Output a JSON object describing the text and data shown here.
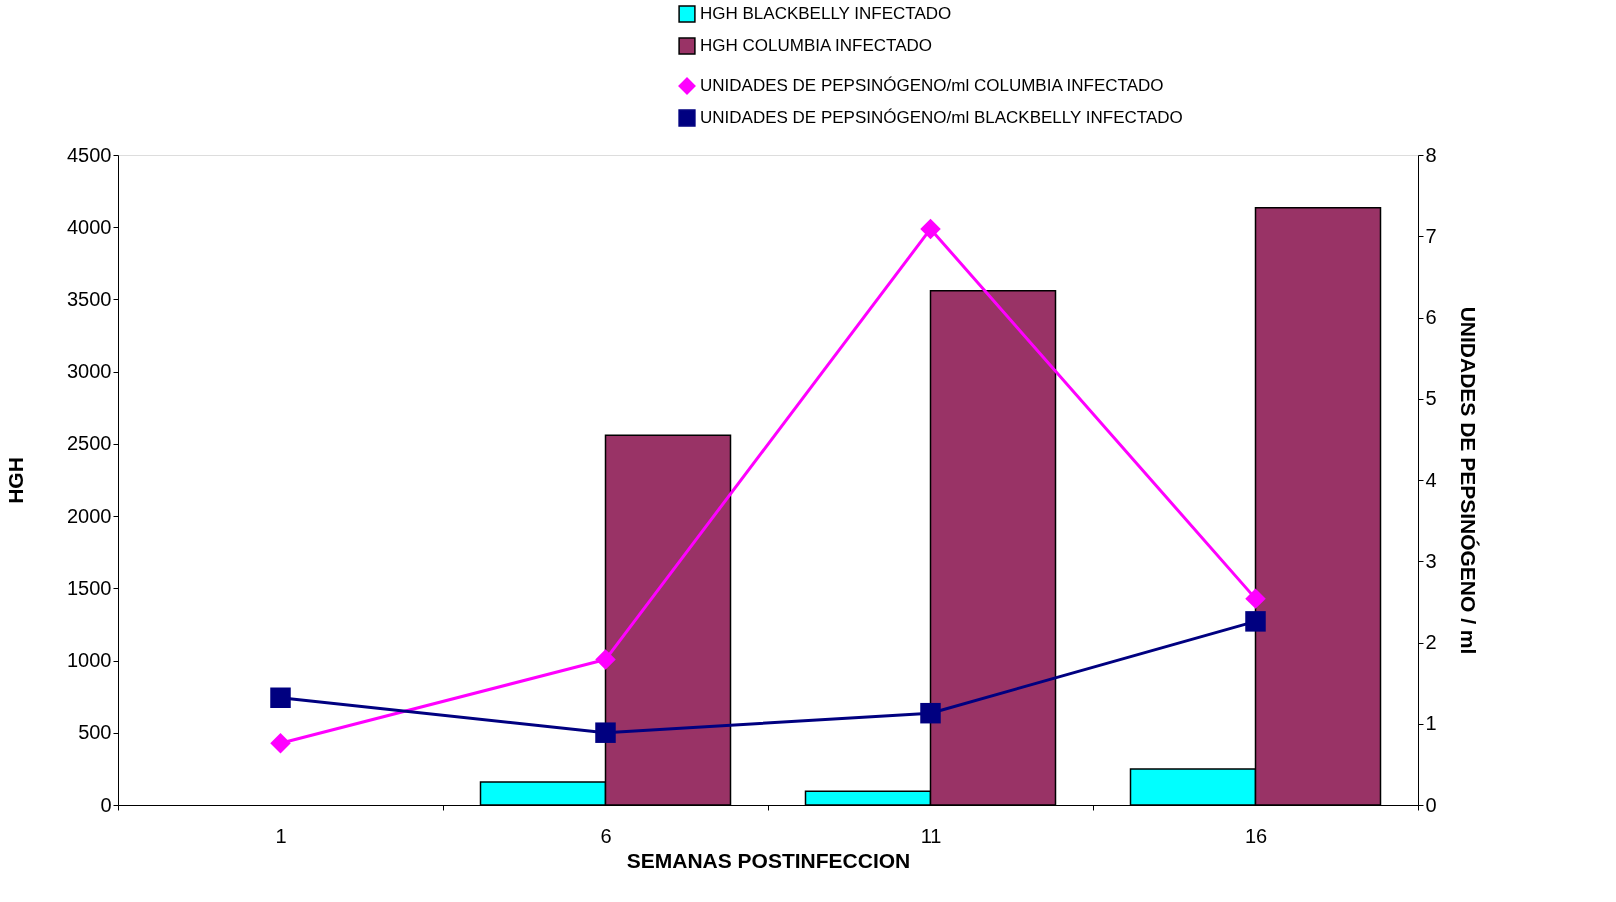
{
  "chart_data": {
    "type": "bar",
    "xlabel": "SEMANAS POSTINFECCION",
    "ylabel": "HGH",
    "y2label": "UNIDADES  DE  PEPSINÓGENO / ml",
    "categories": [
      "1",
      "6",
      "11",
      "16"
    ],
    "series": [
      {
        "name": "HGH BLACKBELLY INFECTADO",
        "type": "bar",
        "color": "#00ffff",
        "values": [
          null,
          160,
          95,
          250
        ]
      },
      {
        "name": "HGH COLUMBIA INFECTADO",
        "type": "bar",
        "color": "#993366",
        "values": [
          null,
          2560,
          3560,
          4135
        ]
      },
      {
        "name": "UNIDADES DE PEPSINÓGENO/ml COLUMBIA INFECTADO",
        "type": "line",
        "axis": "y2",
        "marker": "diamond",
        "color": "#ff00ff",
        "values": [
          0.76,
          1.79,
          7.09,
          2.54
        ]
      },
      {
        "name": "UNIDADES DE PEPSINÓGENO/ml BLACKBELLY INFECTADO",
        "type": "line",
        "axis": "y2",
        "marker": "square",
        "color": "#000080",
        "values": [
          1.32,
          0.89,
          1.13,
          2.26
        ]
      }
    ],
    "ylim": [
      0,
      4500
    ],
    "yticks": [
      0,
      500,
      1000,
      1500,
      2000,
      2500,
      3000,
      3500,
      4000,
      4500
    ],
    "y2lim": [
      0,
      8
    ],
    "y2ticks": [
      0,
      1,
      2,
      3,
      4,
      5,
      6,
      7,
      8
    ],
    "grid": false,
    "legend": "top right"
  }
}
